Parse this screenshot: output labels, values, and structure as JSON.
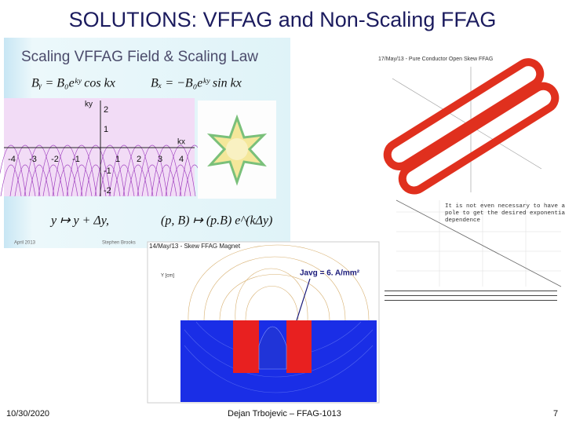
{
  "title": "SOLUTIONS: VFFAG and Non-Scaling FFAG",
  "panel_field": {
    "title": "Scaling VFFAG Field & Scaling Law",
    "equation_by": "Bᵧ = B₀eᵏʸ cos kx",
    "equation_bx": "Bₓ = −B₀eᵏʸ sin kx",
    "law_shift": "y ↦ y + Δy,",
    "law_scale": "(p, B) ↦ (p.B) e^(kΔy)",
    "y_axis_label": "ky",
    "x_axis_label": "kx",
    "x_tick_labels": [
      -4,
      -3,
      -2,
      -1,
      1,
      2,
      3,
      4
    ],
    "y_tick_labels": [
      2,
      1,
      -1,
      -2
    ],
    "footnote_date": "April 2013",
    "footnote_author": "Stephen Brooks"
  },
  "panel_magnet": {
    "title": "14/May/13 - Skew FFAG Magnet",
    "y_axis_label": "Y [cm]",
    "annotation": "Javg = 6. A/mm²"
  },
  "panel_coil": {
    "title": "17/May/13 - Pure Conductor Open Skew FFAG"
  },
  "panel_graph": {
    "note_lines": [
      "It is not even necessary to have a",
      "pole to get the desired exponential",
      "dependence"
    ]
  },
  "footer": {
    "date": "10/30/2020",
    "author": "Dejan Trbojevic – FFAG-1013",
    "page": 7
  }
}
